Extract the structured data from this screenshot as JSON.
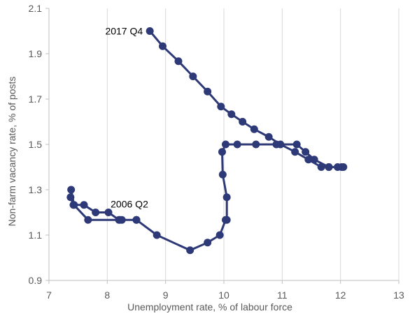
{
  "chart_data": {
    "type": "line",
    "xlabel": "Unemployment rate, % of labour force",
    "ylabel": "Non-farm vacancy rate, % of posts",
    "xlim": [
      7,
      13
    ],
    "ylim": [
      0.9,
      2.1
    ],
    "x_ticks": [
      "7",
      "8",
      "9",
      "10",
      "11",
      "12",
      "13"
    ],
    "y_ticks": [
      "0.9",
      "1.1",
      "1.3",
      "1.5",
      "1.7",
      "1.9",
      "2.1"
    ],
    "grid": "vertical",
    "legend": "none",
    "series_color": "#2E3A78",
    "annotations": [
      {
        "text": "2017 Q4",
        "x": 8.73,
        "y": 2.0
      },
      {
        "text": "2006 Q2",
        "x": 8.5,
        "y": 1.166
      }
    ],
    "series": [
      {
        "points": [
          [
            8.73,
            2.0
          ],
          [
            8.95,
            1.933
          ],
          [
            9.22,
            1.867
          ],
          [
            9.47,
            1.8
          ],
          [
            9.72,
            1.733
          ],
          [
            9.95,
            1.667
          ],
          [
            10.13,
            1.633
          ],
          [
            10.32,
            1.6
          ],
          [
            10.52,
            1.567
          ],
          [
            10.77,
            1.533
          ],
          [
            10.97,
            1.5
          ],
          [
            11.22,
            1.467
          ],
          [
            11.45,
            1.433
          ],
          [
            11.67,
            1.4
          ],
          [
            11.8,
            1.4
          ],
          [
            11.95,
            1.4
          ],
          [
            12.02,
            1.4
          ],
          [
            12.05,
            1.4
          ],
          [
            11.8,
            1.4
          ],
          [
            11.55,
            1.433
          ],
          [
            11.4,
            1.467
          ],
          [
            11.25,
            1.5
          ],
          [
            10.9,
            1.5
          ],
          [
            10.55,
            1.5
          ],
          [
            10.23,
            1.5
          ],
          [
            10.03,
            1.5
          ],
          [
            9.97,
            1.467
          ],
          [
            9.98,
            1.367
          ],
          [
            10.05,
            1.267
          ],
          [
            10.05,
            1.167
          ],
          [
            10.03,
            1.167
          ],
          [
            9.93,
            1.1
          ],
          [
            9.72,
            1.067
          ],
          [
            9.42,
            1.033
          ],
          [
            8.85,
            1.1
          ],
          [
            8.5,
            1.167
          ],
          [
            8.25,
            1.167
          ],
          [
            8.2,
            1.167
          ],
          [
            8.02,
            1.2
          ],
          [
            7.8,
            1.2
          ],
          [
            7.6,
            1.233
          ],
          [
            7.42,
            1.233
          ],
          [
            7.37,
            1.267
          ],
          [
            7.38,
            1.3
          ],
          [
            7.43,
            1.233
          ],
          [
            7.67,
            1.167
          ],
          [
            8.22,
            1.167
          ],
          [
            8.5,
            1.167
          ]
        ]
      }
    ]
  }
}
